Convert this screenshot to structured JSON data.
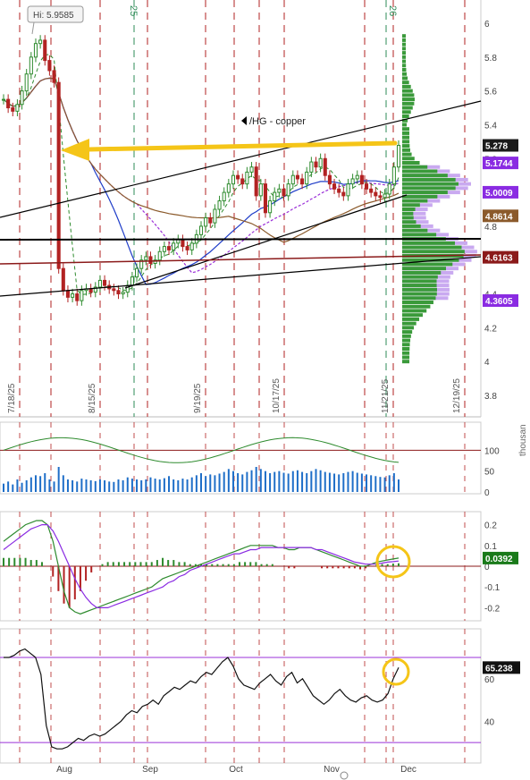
{
  "chart_data": [
    {
      "type": "candlestick",
      "symbol_label": "/HG - copper",
      "high_label": "Hi: 5.9585",
      "ylim": [
        3.65,
        6.1
      ],
      "y_ticks": [
        "6",
        "5.8",
        "5.6",
        "5.4",
        "5.2",
        "5",
        "4.8",
        "4.6",
        "4.4",
        "4.2",
        "4",
        "3.8"
      ],
      "y_tick_values": [
        6,
        5.8,
        5.6,
        5.4,
        5.2,
        5.0,
        4.8,
        4.6,
        4.4,
        4.2,
        4.0,
        3.8
      ],
      "date_markers": [
        "7/18/25",
        "8/15/25",
        "9/19/25",
        "10/17/25",
        "11/21/25",
        "12/19/25"
      ],
      "partial_top_labels": [
        "25",
        "26"
      ],
      "price_tags": [
        {
          "value": "5.278",
          "num": 5.278,
          "bg": "#1a1a1a",
          "fg": "#ffffff"
        },
        {
          "value": "5.1744",
          "num": 5.1744,
          "bg": "#8a2be2",
          "fg": "#ffffff"
        },
        {
          "value": "5.0009",
          "num": 5.0009,
          "bg": "#8a2be2",
          "fg": "#ffffff"
        },
        {
          "value": "4.8614",
          "num": 4.8614,
          "bg": "#8b5a2b",
          "fg": "#ffffff"
        },
        {
          "value": "4.6163",
          "num": 4.6163,
          "bg": "#8b1a1a",
          "fg": "#ffffff"
        },
        {
          "value": "4.3605",
          "num": 4.3605,
          "bg": "#8a2be2",
          "fg": "#ffffff"
        }
      ],
      "closes": [
        5.55,
        5.5,
        5.48,
        5.52,
        5.6,
        5.7,
        5.8,
        5.88,
        5.9,
        5.78,
        5.72,
        5.65,
        4.55,
        4.42,
        4.38,
        4.4,
        4.36,
        4.42,
        4.43,
        4.41,
        4.44,
        4.48,
        4.45,
        4.43,
        4.42,
        4.4,
        4.41,
        4.45,
        4.5,
        4.55,
        4.6,
        4.62,
        4.58,
        4.6,
        4.65,
        4.68,
        4.66,
        4.7,
        4.72,
        4.68,
        4.66,
        4.7,
        4.75,
        4.8,
        4.85,
        4.82,
        4.9,
        4.95,
        5.0,
        5.05,
        5.1,
        5.08,
        5.05,
        5.12,
        5.15,
        4.98,
        5.05,
        4.88,
        4.95,
        5.0,
        5.02,
        4.98,
        5.05,
        5.1,
        5.08,
        5.05,
        5.12,
        5.18,
        5.15,
        5.2,
        5.1,
        5.05,
        5.02,
        5.0,
        4.98,
        5.05,
        5.08,
        5.1,
        5.05,
        5.02,
        5.0,
        4.98,
        4.97,
        4.99,
        5.05,
        5.15,
        5.278
      ]
    },
    {
      "type": "bar",
      "y_ticks": [
        "100",
        "50",
        "0"
      ],
      "y_tick_values": [
        100,
        50,
        0
      ],
      "ylim": [
        0,
        150
      ],
      "axis_label": "thousan",
      "values": [
        20,
        25,
        18,
        30,
        22,
        28,
        35,
        40,
        38,
        45,
        30,
        25,
        60,
        40,
        30,
        28,
        25,
        32,
        30,
        28,
        26,
        30,
        28,
        25,
        24,
        30,
        28,
        35,
        32,
        30,
        28,
        30,
        35,
        32,
        30,
        33,
        38,
        30,
        28,
        32,
        30,
        35,
        40,
        45,
        38,
        42,
        40,
        44,
        48,
        55,
        50,
        45,
        42,
        48,
        52,
        60,
        55,
        50,
        45,
        48,
        50,
        46,
        44,
        50,
        52,
        48,
        45,
        50,
        55,
        52,
        48,
        46,
        44,
        42,
        45,
        48,
        50,
        46,
        44,
        42,
        40,
        38,
        36,
        35,
        40,
        45,
        30
      ]
    },
    {
      "type": "line",
      "y_ticks": [
        "0.2",
        "0.1",
        "0",
        "-0.1",
        "-0.2"
      ],
      "y_tick_values": [
        0.2,
        0.1,
        0,
        -0.1,
        -0.2
      ],
      "ylim": [
        -0.25,
        0.25
      ],
      "tag": "0.0392",
      "tag_value": 0.0392,
      "macd": [
        0.12,
        0.14,
        0.16,
        0.18,
        0.2,
        0.21,
        0.22,
        0.22,
        0.2,
        0.12,
        0.0,
        -0.12,
        -0.2,
        -0.22,
        -0.23,
        -0.22,
        -0.21,
        -0.2,
        -0.19,
        -0.18,
        -0.17,
        -0.16,
        -0.15,
        -0.14,
        -0.13,
        -0.12,
        -0.11,
        -0.1,
        -0.08,
        -0.06,
        -0.05,
        -0.04,
        -0.03,
        -0.02,
        -0.01,
        0.0,
        0.01,
        0.02,
        0.03,
        0.04,
        0.05,
        0.06,
        0.07,
        0.08,
        0.09,
        0.1,
        0.1,
        0.1,
        0.1,
        0.1,
        0.09,
        0.09,
        0.08,
        0.08,
        0.09,
        0.09,
        0.09,
        0.08,
        0.07,
        0.06,
        0.05,
        0.04,
        0.03,
        0.02,
        0.01,
        0.0,
        0.0,
        0.01,
        0.02,
        0.025,
        0.03,
        0.035,
        0.0392
      ],
      "signal": [
        0.08,
        0.1,
        0.12,
        0.14,
        0.16,
        0.18,
        0.19,
        0.2,
        0.2,
        0.17,
        0.12,
        0.06,
        0.0,
        -0.06,
        -0.11,
        -0.15,
        -0.18,
        -0.2,
        -0.2,
        -0.2,
        -0.19,
        -0.18,
        -0.17,
        -0.16,
        -0.15,
        -0.14,
        -0.13,
        -0.12,
        -0.11,
        -0.1,
        -0.08,
        -0.07,
        -0.05,
        -0.04,
        -0.02,
        -0.01,
        0.0,
        0.01,
        0.02,
        0.03,
        0.04,
        0.05,
        0.06,
        0.06,
        0.07,
        0.08,
        0.08,
        0.09,
        0.09,
        0.09,
        0.09,
        0.09,
        0.09,
        0.09,
        0.09,
        0.09,
        0.09,
        0.08,
        0.08,
        0.07,
        0.06,
        0.05,
        0.04,
        0.03,
        0.02,
        0.015,
        0.01,
        0.01,
        0.01,
        0.015,
        0.02,
        0.022,
        0.025
      ]
    },
    {
      "type": "line",
      "y_ticks": [
        "60",
        "40"
      ],
      "y_tick_values": [
        60,
        40
      ],
      "ylim": [
        25,
        80
      ],
      "tag": "65.238",
      "tag_value": 65.238,
      "upper_level": 70,
      "lower_level": 30,
      "values": [
        70,
        70,
        71,
        73,
        74,
        72,
        70,
        62,
        38,
        28,
        27,
        27,
        28,
        30,
        32,
        31,
        33,
        34,
        33,
        34,
        36,
        38,
        40,
        43,
        45,
        44,
        47,
        48,
        50,
        48,
        52,
        54,
        56,
        55,
        57,
        59,
        58,
        61,
        63,
        62,
        65,
        68,
        70,
        66,
        60,
        57,
        56,
        55,
        58,
        60,
        62,
        59,
        57,
        61,
        63,
        58,
        60,
        56,
        52,
        50,
        48,
        50,
        53,
        55,
        52,
        50,
        49,
        51,
        52,
        50,
        49,
        50,
        53,
        60,
        65.238
      ]
    }
  ],
  "x_month_labels": [
    "Aug",
    "Sep",
    "Oct",
    "Nov",
    "Dec"
  ],
  "colors": {
    "up": "#2e8b2e",
    "down": "#b22222",
    "trend": "#000000",
    "arrow": "#f5c518",
    "profile": "#3a9a3a",
    "profile_alt": "#c9a9f0",
    "signal": "#8a2be2",
    "macd": "#2e8b2e",
    "circle": "#f5c518"
  }
}
